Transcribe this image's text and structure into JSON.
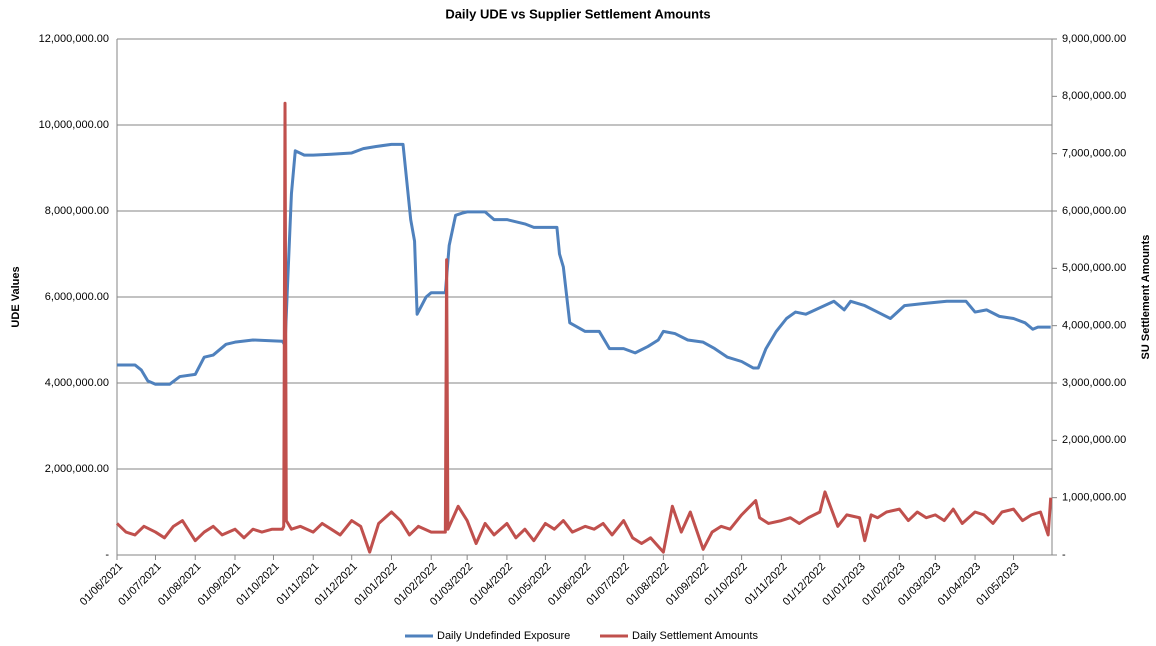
{
  "chart_data": {
    "type": "line",
    "title": "Daily UDE vs Supplier Settlement Amounts",
    "y_label": "UDE Values",
    "y2_label": "SU Settlement Amounts",
    "grid": true,
    "legend": "bottom",
    "xlim": [
      "01/06/2021",
      "31/05/2023"
    ],
    "xticks": [
      "01/06/2021",
      "01/07/2021",
      "01/08/2021",
      "01/09/2021",
      "01/10/2021",
      "01/11/2021",
      "01/12/2021",
      "01/01/2022",
      "01/02/2022",
      "01/03/2022",
      "01/04/2022",
      "01/05/2022",
      "01/06/2022",
      "01/07/2022",
      "01/08/2022",
      "01/09/2022",
      "01/10/2022",
      "01/11/2022",
      "01/12/2022",
      "01/01/2023",
      "01/02/2023",
      "01/03/2023",
      "01/04/2023",
      "01/05/2023"
    ],
    "ylim": [
      0,
      12000000
    ],
    "yticks": [
      {
        "value": 0,
        "label": "-"
      },
      {
        "value": 2000000,
        "label": "2,000,000.00"
      },
      {
        "value": 4000000,
        "label": "4,000,000.00"
      },
      {
        "value": 6000000,
        "label": "6,000,000.00"
      },
      {
        "value": 8000000,
        "label": "8,000,000.00"
      },
      {
        "value": 10000000,
        "label": "10,000,000.00"
      },
      {
        "value": 12000000,
        "label": "12,000,000.00"
      }
    ],
    "y2lim": [
      0,
      9000000
    ],
    "y2ticks": [
      {
        "value": 0,
        "label": "-"
      },
      {
        "value": 1000000,
        "label": "1,000,000.00"
      },
      {
        "value": 2000000,
        "label": "2,000,000.00"
      },
      {
        "value": 3000000,
        "label": "3,000,000.00"
      },
      {
        "value": 4000000,
        "label": "4,000,000.00"
      },
      {
        "value": 5000000,
        "label": "5,000,000.00"
      },
      {
        "value": 6000000,
        "label": "6,000,000.00"
      },
      {
        "value": 7000000,
        "label": "7,000,000.00"
      },
      {
        "value": 8000000,
        "label": "8,000,000.00"
      },
      {
        "value": 9000000,
        "label": "9,000,000.00"
      }
    ],
    "series": [
      {
        "name": "Daily Undefinded Exposure",
        "color": "#4f81bd",
        "axis": "y",
        "x": [
          "01/06/2021",
          "15/06/2021",
          "20/06/2021",
          "25/06/2021",
          "01/07/2021",
          "12/07/2021",
          "20/07/2021",
          "01/08/2021",
          "08/08/2021",
          "15/08/2021",
          "25/08/2021",
          "01/09/2021",
          "15/09/2021",
          "01/10/2021",
          "08/10/2021",
          "10/10/2021",
          "12/10/2021",
          "15/10/2021",
          "18/10/2021",
          "25/10/2021",
          "01/11/2021",
          "15/11/2021",
          "01/12/2021",
          "10/12/2021",
          "20/12/2021",
          "01/01/2022",
          "10/01/2022",
          "16/01/2022",
          "19/01/2022",
          "21/01/2022",
          "28/01/2022",
          "01/02/2022",
          "12/02/2022",
          "15/02/2022",
          "20/02/2022",
          "25/02/2022",
          "01/03/2022",
          "15/03/2022",
          "22/03/2022",
          "01/04/2022",
          "15/04/2022",
          "22/04/2022",
          "10/05/2022",
          "12/05/2022",
          "15/05/2022",
          "20/05/2022",
          "01/06/2022",
          "12/06/2022",
          "20/06/2022",
          "01/07/2022",
          "10/07/2022",
          "20/07/2022",
          "28/07/2022",
          "01/08/2022",
          "10/08/2022",
          "20/08/2022",
          "01/09/2022",
          "10/09/2022",
          "20/09/2022",
          "01/10/2022",
          "10/10/2022",
          "14/10/2022",
          "20/10/2022",
          "28/10/2022",
          "05/11/2022",
          "12/11/2022",
          "20/11/2022",
          "01/12/2022",
          "12/12/2022",
          "20/12/2022",
          "25/12/2022",
          "05/01/2023",
          "15/01/2023",
          "25/01/2023",
          "05/02/2023",
          "20/02/2023",
          "10/03/2023",
          "25/03/2023",
          "01/04/2023",
          "10/04/2023",
          "20/04/2023",
          "01/05/2023",
          "10/05/2023",
          "16/05/2023",
          "20/05/2023",
          "30/05/2023"
        ],
        "values": [
          4420000,
          4420000,
          4300000,
          4050000,
          3970000,
          3970000,
          4150000,
          4200000,
          4600000,
          4650000,
          4900000,
          4950000,
          5000000,
          4980000,
          4970000,
          4880000,
          6300000,
          8400000,
          9400000,
          9300000,
          9300000,
          9320000,
          9350000,
          9450000,
          9500000,
          9550000,
          9550000,
          7800000,
          7300000,
          5600000,
          6000000,
          6100000,
          6100000,
          7200000,
          7900000,
          7950000,
          7980000,
          7980000,
          7800000,
          7800000,
          7700000,
          7620000,
          7620000,
          7000000,
          6700000,
          5400000,
          5200000,
          5200000,
          4800000,
          4800000,
          4700000,
          4850000,
          5000000,
          5200000,
          5150000,
          5000000,
          4950000,
          4800000,
          4600000,
          4500000,
          4350000,
          4350000,
          4800000,
          5200000,
          5500000,
          5650000,
          5600000,
          5750000,
          5900000,
          5700000,
          5900000,
          5800000,
          5650000,
          5500000,
          5800000,
          5850000,
          5900000,
          5900000,
          5650000,
          5700000,
          5550000,
          5500000,
          5400000,
          5250000,
          5300000,
          5300000
        ]
      },
      {
        "name": "Daily Settlement Amounts",
        "color": "#c0504d",
        "axis": "y2",
        "x": [
          "01/06/2021",
          "08/06/2021",
          "15/06/2021",
          "22/06/2021",
          "01/07/2021",
          "08/07/2021",
          "15/07/2021",
          "22/07/2021",
          "01/08/2021",
          "08/08/2021",
          "15/08/2021",
          "22/08/2021",
          "01/09/2021",
          "08/09/2021",
          "15/09/2021",
          "22/09/2021",
          "30/09/2021",
          "08/10/2021",
          "09/10/2021",
          "10/10/2021",
          "11/10/2021",
          "15/10/2021",
          "22/10/2021",
          "01/11/2021",
          "08/11/2021",
          "15/11/2021",
          "22/11/2021",
          "01/12/2021",
          "08/12/2021",
          "15/12/2021",
          "22/12/2021",
          "01/01/2022",
          "08/01/2022",
          "15/01/2022",
          "22/01/2022",
          "01/02/2022",
          "12/02/2022",
          "13/02/2022",
          "14/02/2022",
          "22/02/2022",
          "01/03/2022",
          "08/03/2022",
          "15/03/2022",
          "22/03/2022",
          "01/04/2022",
          "08/04/2022",
          "15/04/2022",
          "22/04/2022",
          "01/05/2022",
          "08/05/2022",
          "15/05/2022",
          "22/05/2022",
          "01/06/2022",
          "08/06/2022",
          "15/06/2022",
          "22/06/2022",
          "01/07/2022",
          "08/07/2022",
          "15/07/2022",
          "22/07/2022",
          "01/08/2022",
          "08/08/2022",
          "15/08/2022",
          "22/08/2022",
          "01/09/2022",
          "08/09/2022",
          "15/09/2022",
          "22/09/2022",
          "01/10/2022",
          "12/10/2022",
          "15/10/2022",
          "22/10/2022",
          "01/11/2022",
          "08/11/2022",
          "15/11/2022",
          "22/11/2022",
          "01/12/2022",
          "05/12/2022",
          "15/12/2022",
          "22/12/2022",
          "01/01/2023",
          "05/01/2023",
          "10/01/2023",
          "15/01/2023",
          "22/01/2023",
          "01/02/2023",
          "08/02/2023",
          "15/02/2023",
          "22/02/2023",
          "01/03/2023",
          "08/03/2023",
          "15/03/2023",
          "22/03/2023",
          "01/04/2023",
          "08/04/2023",
          "15/04/2023",
          "22/04/2023",
          "01/05/2023",
          "08/05/2023",
          "15/05/2023",
          "22/05/2023",
          "28/05/2023",
          "30/05/2023"
        ],
        "values": [
          550000,
          400000,
          350000,
          500000,
          400000,
          300000,
          500000,
          600000,
          250000,
          400000,
          500000,
          350000,
          450000,
          300000,
          450000,
          400000,
          450000,
          450000,
          500000,
          7880000,
          600000,
          450000,
          500000,
          400000,
          550000,
          450000,
          350000,
          600000,
          500000,
          50000,
          550000,
          750000,
          600000,
          350000,
          500000,
          400000,
          400000,
          5150000,
          450000,
          850000,
          600000,
          200000,
          550000,
          350000,
          550000,
          300000,
          450000,
          250000,
          550000,
          450000,
          600000,
          400000,
          500000,
          450000,
          550000,
          350000,
          600000,
          300000,
          200000,
          300000,
          50000,
          850000,
          400000,
          750000,
          100000,
          400000,
          500000,
          450000,
          700000,
          950000,
          650000,
          550000,
          600000,
          650000,
          550000,
          650000,
          750000,
          1100000,
          500000,
          700000,
          650000,
          250000,
          700000,
          650000,
          750000,
          800000,
          600000,
          750000,
          650000,
          700000,
          600000,
          800000,
          550000,
          750000,
          700000,
          550000,
          750000,
          800000,
          600000,
          700000,
          750000,
          350000,
          1000000
        ]
      }
    ]
  }
}
